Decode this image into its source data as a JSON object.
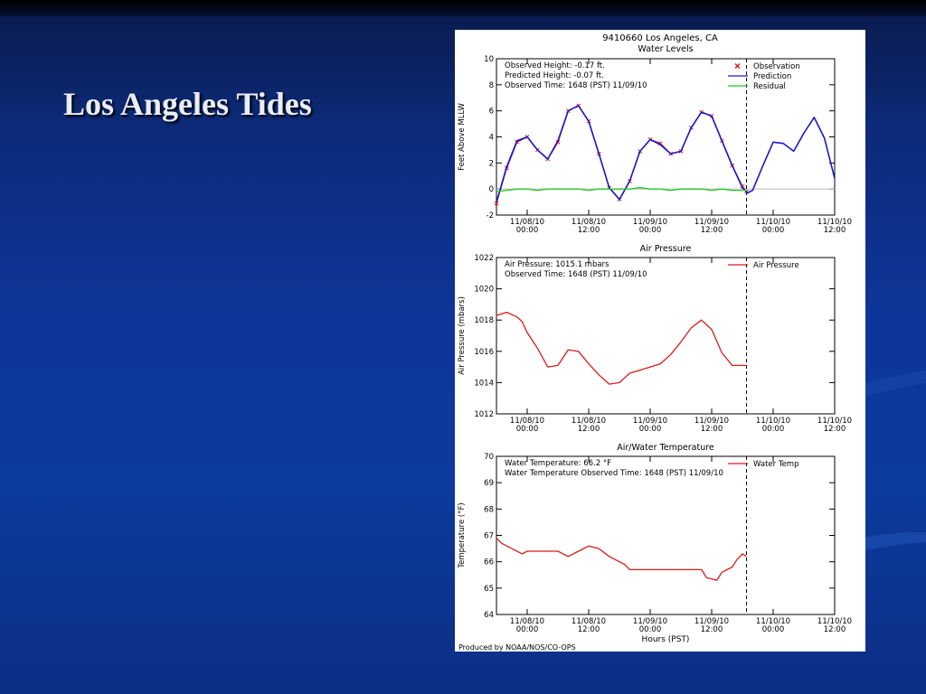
{
  "slide": {
    "title": "Los Angeles Tides"
  },
  "figure": {
    "title": "9410660 Los Angeles, CA",
    "footer": "Produced by NOAA/NOS/CO-OPS"
  },
  "chart_data": [
    {
      "type": "line",
      "title": "Water Levels",
      "ylabel": "Feet Above MLLW",
      "xlabel": "",
      "ylim": [
        -2,
        10
      ],
      "yticks": [
        -2,
        0,
        2,
        4,
        6,
        8,
        10
      ],
      "x_unit": "hours since 11/08/10 00:00",
      "xlim": [
        -6,
        60
      ],
      "xticks": [
        0,
        12,
        24,
        36,
        48,
        60
      ],
      "xtick_labels": [
        [
          "11/08/10",
          "00:00"
        ],
        [
          "11/08/10",
          "12:00"
        ],
        [
          "11/09/10",
          "00:00"
        ],
        [
          "11/09/10",
          "12:00"
        ],
        [
          "11/10/10",
          "00:00"
        ],
        [
          "11/10/10",
          "12:00"
        ]
      ],
      "now_marker_x": 42.8,
      "info": [
        "Observed Height:   -0.17 ft.",
        "Predicted Height:   -0.07 ft.",
        "Observed Time: 1648 (PST) 11/09/10"
      ],
      "legend_position": "top-right",
      "series": [
        {
          "name": "Observation",
          "color": "#d81a1a",
          "marker": "x",
          "x": [
            -6,
            -4,
            -2,
            0,
            2,
            4,
            6,
            8,
            10,
            12,
            14,
            16,
            18,
            20,
            22,
            24,
            26,
            28,
            30,
            32,
            34,
            36,
            38,
            40,
            42,
            42.8
          ],
          "y": [
            -1.1,
            1.6,
            3.6,
            4.0,
            3.0,
            2.3,
            3.6,
            6.0,
            6.4,
            5.2,
            2.7,
            0.1,
            -0.8,
            0.6,
            2.9,
            3.8,
            3.5,
            2.7,
            2.9,
            4.7,
            5.9,
            5.6,
            3.7,
            1.8,
            0.2,
            -0.2
          ]
        },
        {
          "name": "Prediction",
          "color": "#1a1ac8",
          "x": [
            -6,
            -4,
            -2,
            0,
            2,
            4,
            6,
            8,
            10,
            12,
            14,
            16,
            18,
            20,
            22,
            24,
            26,
            28,
            30,
            32,
            34,
            36,
            38,
            40,
            42,
            43,
            44,
            46,
            48,
            50,
            52,
            54,
            56,
            58,
            60
          ],
          "y": [
            -1.0,
            1.7,
            3.7,
            4.0,
            3.0,
            2.3,
            3.7,
            6.0,
            6.4,
            5.2,
            2.7,
            0.1,
            -0.8,
            0.6,
            2.9,
            3.8,
            3.4,
            2.7,
            2.9,
            4.7,
            5.9,
            5.6,
            3.7,
            1.8,
            0.1,
            -0.3,
            -0.1,
            1.8,
            3.6,
            3.5,
            2.9,
            4.3,
            5.5,
            3.9,
            0.8
          ]
        },
        {
          "name": "Residual",
          "color": "#22c822",
          "x": [
            -6,
            -4,
            -2,
            0,
            2,
            4,
            6,
            8,
            10,
            12,
            14,
            16,
            18,
            20,
            22,
            24,
            26,
            28,
            30,
            32,
            34,
            36,
            38,
            40,
            42,
            42.8
          ],
          "y": [
            -0.2,
            -0.1,
            0.0,
            0.0,
            -0.1,
            0.0,
            0.0,
            0.0,
            0.0,
            -0.1,
            0.0,
            0.0,
            0.0,
            0.0,
            0.1,
            0.0,
            0.0,
            -0.1,
            0.0,
            0.0,
            0.0,
            -0.1,
            0.0,
            -0.1,
            -0.1,
            -0.1
          ]
        }
      ]
    },
    {
      "type": "line",
      "title": "Air Pressure",
      "ylabel": "Air Pressure (mbars)",
      "xlabel": "",
      "ylim": [
        1012,
        1022
      ],
      "yticks": [
        1012,
        1014,
        1016,
        1018,
        1020,
        1022
      ],
      "x_unit": "hours since 11/08/10 00:00",
      "xlim": [
        -6,
        60
      ],
      "xticks": [
        0,
        12,
        24,
        36,
        48,
        60
      ],
      "xtick_labels": [
        [
          "11/08/10",
          "00:00"
        ],
        [
          "11/08/10",
          "12:00"
        ],
        [
          "11/09/10",
          "00:00"
        ],
        [
          "11/09/10",
          "12:00"
        ],
        [
          "11/10/10",
          "00:00"
        ],
        [
          "11/10/10",
          "12:00"
        ]
      ],
      "now_marker_x": 42.8,
      "info": [
        "Air Pressure: 1015.1 mbars",
        "Observed Time: 1648 (PST) 11/09/10"
      ],
      "legend_position": "top-right",
      "series": [
        {
          "name": "Air Pressure",
          "color": "#d81a1a",
          "x": [
            -6,
            -4,
            -2,
            -1,
            0,
            2,
            4,
            6,
            8,
            10,
            12,
            14,
            16,
            18,
            19,
            20,
            22,
            24,
            26,
            28,
            30,
            32,
            34,
            36,
            38,
            40,
            42,
            42.8
          ],
          "y": [
            1018.3,
            1018.5,
            1018.2,
            1017.9,
            1017.2,
            1016.2,
            1015.0,
            1015.1,
            1016.1,
            1016.0,
            1015.2,
            1014.5,
            1013.9,
            1014.0,
            1014.3,
            1014.6,
            1014.8,
            1015.0,
            1015.2,
            1015.8,
            1016.6,
            1017.5,
            1018.0,
            1017.4,
            1015.9,
            1015.1,
            1015.1,
            1015.1
          ]
        }
      ]
    },
    {
      "type": "line",
      "title": "Air/Water Temperature",
      "ylabel": "Temperature (°F)",
      "xlabel": "Hours (PST)",
      "ylim": [
        64,
        70
      ],
      "yticks": [
        64,
        65,
        66,
        67,
        68,
        69,
        70
      ],
      "x_unit": "hours since 11/08/10 00:00",
      "xlim": [
        -6,
        60
      ],
      "xticks": [
        0,
        12,
        24,
        36,
        48,
        60
      ],
      "xtick_labels": [
        [
          "11/08/10",
          "00:00"
        ],
        [
          "11/08/10",
          "12:00"
        ],
        [
          "11/09/10",
          "00:00"
        ],
        [
          "11/09/10",
          "12:00"
        ],
        [
          "11/10/10",
          "00:00"
        ],
        [
          "11/10/10",
          "12:00"
        ]
      ],
      "now_marker_x": 42.8,
      "info": [
        "Water Temperature:   66.2 °F",
        "Water Temperature Observed Time: 1648 (PST) 11/09/10"
      ],
      "legend_position": "top-right",
      "series": [
        {
          "name": "Water Temp",
          "color": "#d81a1a",
          "x": [
            -6,
            -5,
            -3,
            -1,
            0,
            2,
            4,
            6,
            8,
            10,
            12,
            14,
            16,
            18,
            19,
            20,
            22,
            24,
            26,
            28,
            30,
            32,
            34,
            35,
            37,
            38,
            40,
            41,
            42,
            42.8
          ],
          "y": [
            66.9,
            66.7,
            66.5,
            66.3,
            66.4,
            66.4,
            66.4,
            66.4,
            66.2,
            66.4,
            66.6,
            66.5,
            66.2,
            66.0,
            65.9,
            65.7,
            65.7,
            65.7,
            65.7,
            65.7,
            65.7,
            65.7,
            65.7,
            65.4,
            65.3,
            65.6,
            65.8,
            66.1,
            66.3,
            66.2
          ]
        }
      ]
    }
  ]
}
